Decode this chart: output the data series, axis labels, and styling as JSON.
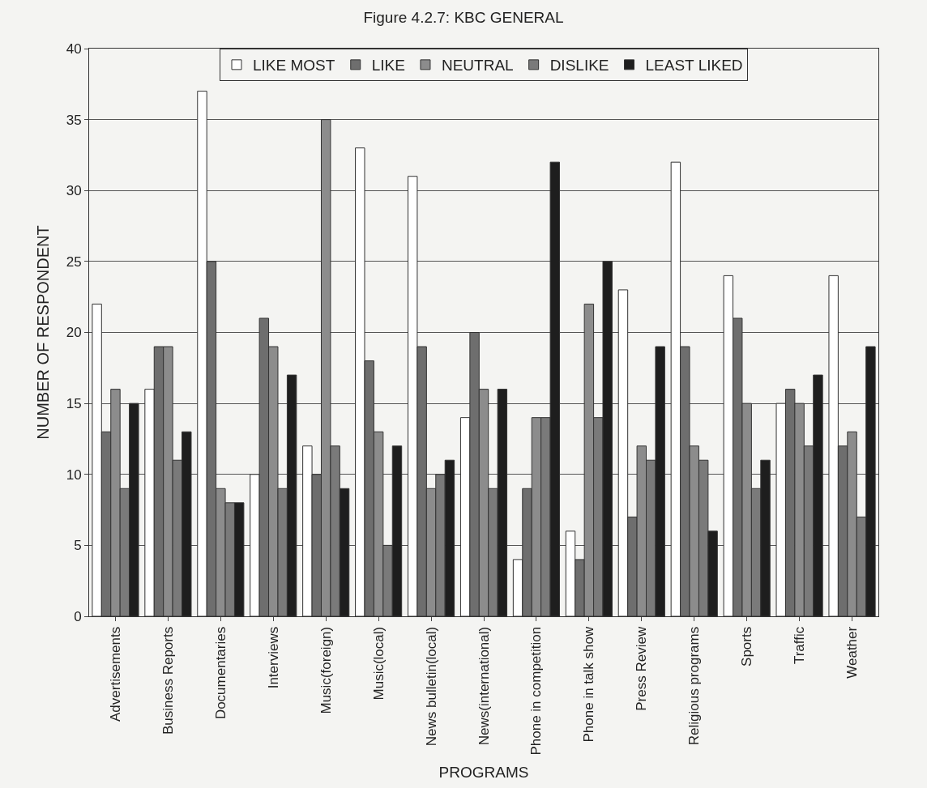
{
  "chart_data": {
    "type": "bar",
    "title": "Figure 4.2.7: KBC GENERAL",
    "xlabel": "PROGRAMS",
    "ylabel": "NUMBER OF RESPONDENT",
    "categories": [
      "Advertisements",
      "Business Reports",
      "Documentaries",
      "Interviews",
      "Music(foreign)",
      "Music(local)",
      "News bulletin(local)",
      "News(international)",
      "Phone in competition",
      "Phone in talk show",
      "Press Review",
      "Religious programs",
      "Sports",
      "Traffic",
      "Weather"
    ],
    "series": [
      {
        "name": "LIKE MOST",
        "color": "#ffffff",
        "values": [
          22,
          16,
          37,
          10,
          12,
          33,
          31,
          14,
          4,
          6,
          23,
          32,
          24,
          15,
          24
        ]
      },
      {
        "name": "LIKE",
        "color": "#6e6e6e",
        "values": [
          13,
          19,
          25,
          21,
          10,
          18,
          19,
          20,
          9,
          4,
          7,
          19,
          21,
          16,
          12
        ]
      },
      {
        "name": "NEUTRAL",
        "color": "#8c8c8c",
        "values": [
          16,
          19,
          9,
          19,
          35,
          13,
          9,
          16,
          14,
          22,
          12,
          12,
          15,
          15,
          13
        ]
      },
      {
        "name": "DISLIKE",
        "color": "#7a7a7a",
        "values": [
          9,
          11,
          8,
          9,
          12,
          5,
          10,
          9,
          14,
          14,
          11,
          11,
          9,
          12,
          7
        ]
      },
      {
        "name": "LEAST LIKED",
        "color": "#1e1e1e",
        "values": [
          15,
          13,
          8,
          17,
          9,
          12,
          11,
          16,
          32,
          25,
          19,
          6,
          11,
          17,
          19
        ]
      }
    ],
    "ylim": [
      0,
      40
    ],
    "yticks": [
      0,
      5,
      10,
      15,
      20,
      25,
      30,
      35,
      40
    ],
    "grid": "y",
    "legend": "top"
  }
}
